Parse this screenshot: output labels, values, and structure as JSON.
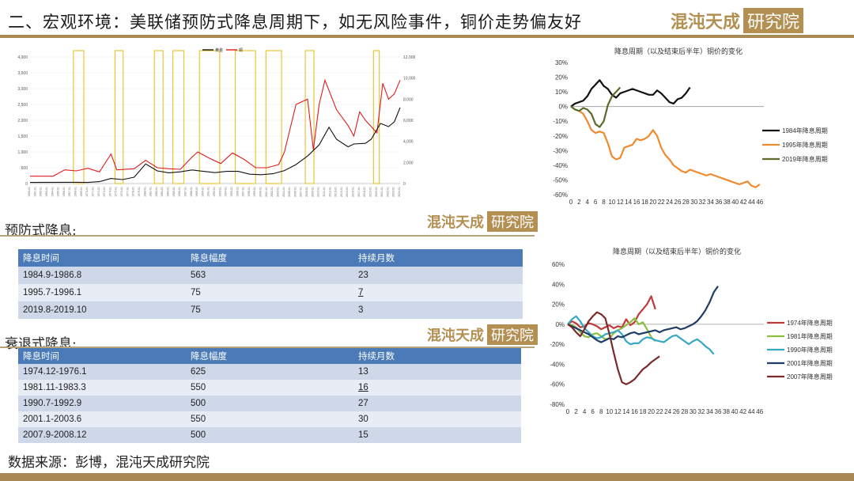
{
  "title": "二、宏观环境：美联储预防式降息周期下，如无风险事件，铜价走势偏友好",
  "brand": {
    "left": "混沌天成",
    "box": "研究院"
  },
  "section_preventive": "预防式降息:",
  "section_recession": "衰退式降息:",
  "table_headers": [
    "降息时间",
    "降息幅度",
    "持续月数"
  ],
  "preventive_rows": [
    [
      "1984.9-1986.8",
      "563",
      "23"
    ],
    [
      "1995.7-1996.1",
      "75",
      "7"
    ],
    [
      "2019.8-2019.10",
      "75",
      "3"
    ]
  ],
  "recession_rows": [
    [
      "1974.12-1976.1",
      "625",
      "13"
    ],
    [
      "1981.11-1983.3",
      "550",
      "16"
    ],
    [
      "1990.7-1992.9",
      "500",
      "27"
    ],
    [
      "2001.1-2003.6",
      "550",
      "30"
    ],
    [
      "2007.9-2008.12",
      "500",
      "15"
    ]
  ],
  "footer": "数据来源：彭博，混沌天成研究院",
  "chart_data": [
    {
      "type": "line",
      "legend": [
        "黄金",
        "铜"
      ],
      "colors": {
        "gold": "#111111",
        "copper": "#e01b1b",
        "highlight": "#e8c53a"
      },
      "ylim_left": [
        0,
        4000
      ],
      "yticks_left": [
        "0",
        "500",
        "1,000",
        "1,500",
        "2,000",
        "2,500",
        "3,000",
        "3,500",
        "4,000"
      ],
      "ylim_right": [
        0,
        12000
      ],
      "yticks_right": [
        "0",
        "2,000",
        "4,000",
        "6,000",
        "8,000",
        "10,000",
        "12,000"
      ],
      "xrange": [
        1960,
        2024
      ],
      "gold": [
        [
          1960,
          35
        ],
        [
          1968,
          38
        ],
        [
          1970,
          36
        ],
        [
          1972,
          60
        ],
        [
          1974,
          160
        ],
        [
          1976,
          125
        ],
        [
          1978,
          200
        ],
        [
          1980,
          620
        ],
        [
          1982,
          400
        ],
        [
          1984,
          340
        ],
        [
          1986,
          370
        ],
        [
          1988,
          430
        ],
        [
          1990,
          385
        ],
        [
          1992,
          345
        ],
        [
          1994,
          385
        ],
        [
          1996,
          385
        ],
        [
          1998,
          295
        ],
        [
          2000,
          280
        ],
        [
          2002,
          310
        ],
        [
          2004,
          410
        ],
        [
          2006,
          600
        ],
        [
          2008,
          870
        ],
        [
          2010,
          1220
        ],
        [
          2011.7,
          1780
        ],
        [
          2013,
          1400
        ],
        [
          2015,
          1160
        ],
        [
          2016,
          1250
        ],
        [
          2018,
          1270
        ],
        [
          2019,
          1400
        ],
        [
          2020.6,
          1900
        ],
        [
          2022,
          1800
        ],
        [
          2023,
          1950
        ],
        [
          2024,
          2400
        ]
      ],
      "copper": [
        [
          1960,
          700
        ],
        [
          1964,
          700
        ],
        [
          1966,
          1300
        ],
        [
          1968,
          1200
        ],
        [
          1970,
          1450
        ],
        [
          1972,
          1100
        ],
        [
          1974,
          2800
        ],
        [
          1975,
          1300
        ],
        [
          1978,
          1400
        ],
        [
          1980,
          2200
        ],
        [
          1982,
          1500
        ],
        [
          1984,
          1400
        ],
        [
          1986,
          1350
        ],
        [
          1988,
          2500
        ],
        [
          1989,
          3000
        ],
        [
          1991,
          2400
        ],
        [
          1993,
          1900
        ],
        [
          1995,
          2900
        ],
        [
          1997,
          2300
        ],
        [
          1999,
          1500
        ],
        [
          2001,
          1500
        ],
        [
          2003,
          1800
        ],
        [
          2004,
          3000
        ],
        [
          2006,
          7500
        ],
        [
          2008,
          8000
        ],
        [
          2009,
          3200
        ],
        [
          2010,
          7500
        ],
        [
          2011,
          9800
        ],
        [
          2013,
          7000
        ],
        [
          2015,
          5500
        ],
        [
          2016,
          4500
        ],
        [
          2017,
          6800
        ],
        [
          2018,
          6000
        ],
        [
          2020,
          4800
        ],
        [
          2021,
          9500
        ],
        [
          2022,
          8000
        ],
        [
          2023,
          8500
        ],
        [
          2024,
          9800
        ]
      ],
      "highlight_periods": [
        [
          1967.5,
          1969.3
        ],
        [
          1974.7,
          1976.1
        ],
        [
          1981.5,
          1983.0
        ],
        [
          1984.7,
          1986.6
        ],
        [
          1989.3,
          1992.8
        ],
        [
          1995.5,
          1999.0
        ],
        [
          2000.8,
          2003.5
        ],
        [
          2007.6,
          2009.1
        ],
        [
          2019.4,
          2020.4
        ]
      ]
    },
    {
      "type": "line",
      "title": "降息周期（以及结束后半年）铜价的变化",
      "ylim": [
        -60,
        30
      ],
      "yticks": [
        "30%",
        "20%",
        "10%",
        "0%",
        "-10%",
        "-20%",
        "-30%",
        "-40%",
        "-50%",
        "-60%"
      ],
      "xticks": [
        "0",
        "2",
        "4",
        "6",
        "8",
        "10",
        "12",
        "14",
        "16",
        "18",
        "20",
        "22",
        "24",
        "26",
        "28",
        "30",
        "32",
        "34",
        "36",
        "38",
        "40",
        "42",
        "44",
        "46"
      ],
      "series": [
        {
          "name": "1984年降息周期",
          "color": "#111111",
          "values": [
            0,
            2,
            3,
            4,
            7,
            12,
            15,
            18,
            14,
            12,
            8,
            6,
            9,
            10,
            11,
            12,
            11,
            10,
            9,
            8,
            8,
            11,
            9,
            6,
            3,
            2,
            5,
            6,
            9,
            13
          ]
        },
        {
          "name": "1995年降息周期",
          "color": "#f08a2f",
          "values": [
            0,
            -2,
            -3,
            -5,
            -10,
            -16,
            -18,
            -17,
            -18,
            -25,
            -34,
            -36,
            -35,
            -28,
            -27,
            -26,
            -22,
            -23,
            -22,
            -20,
            -16,
            -20,
            -28,
            -33,
            -36,
            -40,
            -42,
            -44,
            -45,
            -43,
            -44,
            -45,
            -46,
            -47,
            -46,
            -47,
            -48,
            -49,
            -50,
            -51,
            -52,
            -53,
            -52,
            -51,
            -54,
            -55,
            -53
          ]
        },
        {
          "name": "2019年降息周期",
          "color": "#5a6b2a",
          "values": [
            0,
            -2,
            -3,
            -1,
            -2,
            -5,
            -12,
            -14,
            -10,
            1,
            7,
            10,
            13
          ]
        }
      ]
    },
    {
      "type": "line",
      "title": "降息周期（以及结束后半年）铜价的变化",
      "ylim": [
        -80,
        60
      ],
      "yticks": [
        "60%",
        "40%",
        "20%",
        "0%",
        "-20%",
        "-40%",
        "-60%",
        "-80%"
      ],
      "xticks": [
        "0",
        "2",
        "4",
        "6",
        "8",
        "10",
        "12",
        "14",
        "16",
        "18",
        "20",
        "22",
        "24",
        "26",
        "28",
        "30",
        "32",
        "34",
        "36",
        "38",
        "40",
        "42",
        "44",
        "46"
      ],
      "series": [
        {
          "name": "1974年降息周期",
          "color": "#c0393b",
          "values": [
            0,
            3,
            1,
            -3,
            -2,
            1,
            0,
            -2,
            -5,
            -3,
            -1,
            -4,
            -2,
            -3,
            5,
            -1,
            2,
            10,
            15,
            20,
            28,
            15
          ]
        },
        {
          "name": "1981年降息周期",
          "color": "#8cbf3f",
          "values": [
            0,
            -1,
            -3,
            -8,
            -12,
            -13,
            -10,
            -9,
            -12,
            -15,
            -14,
            -9,
            -6,
            -4,
            -1,
            2,
            6,
            0,
            2,
            -5,
            -13,
            -17
          ]
        },
        {
          "name": "1990年降息周期",
          "color": "#35a9c3",
          "values": [
            0,
            5,
            8,
            3,
            -4,
            -8,
            -12,
            -14,
            -13,
            -10,
            -9,
            -8,
            -6,
            -10,
            -17,
            -20,
            -19,
            -19,
            -15,
            -13,
            -14,
            -16,
            -17,
            -18,
            -15,
            -12,
            -11,
            -14,
            -17,
            -20,
            -17,
            -15,
            -18,
            -22,
            -25,
            -30
          ]
        },
        {
          "name": "2001年降息周期",
          "color": "#1f3d66",
          "values": [
            0,
            -2,
            -4,
            -6,
            -8,
            -10,
            -13,
            -16,
            -18,
            -16,
            -14,
            -15,
            -12,
            -13,
            -11,
            -9,
            -8,
            -10,
            -9,
            -8,
            -7,
            -6,
            -8,
            -6,
            -5,
            -4,
            -3,
            -5,
            -4,
            -2,
            0,
            3,
            8,
            14,
            22,
            32,
            38
          ]
        },
        {
          "name": "2007年降息周期",
          "color": "#7b2a2a",
          "values": [
            0,
            -3,
            -8,
            -12,
            -5,
            3,
            8,
            12,
            10,
            6,
            -10,
            -28,
            -45,
            -58,
            -60,
            -58,
            -55,
            -50,
            -45,
            -42,
            -38,
            -35,
            -32
          ]
        }
      ]
    }
  ]
}
